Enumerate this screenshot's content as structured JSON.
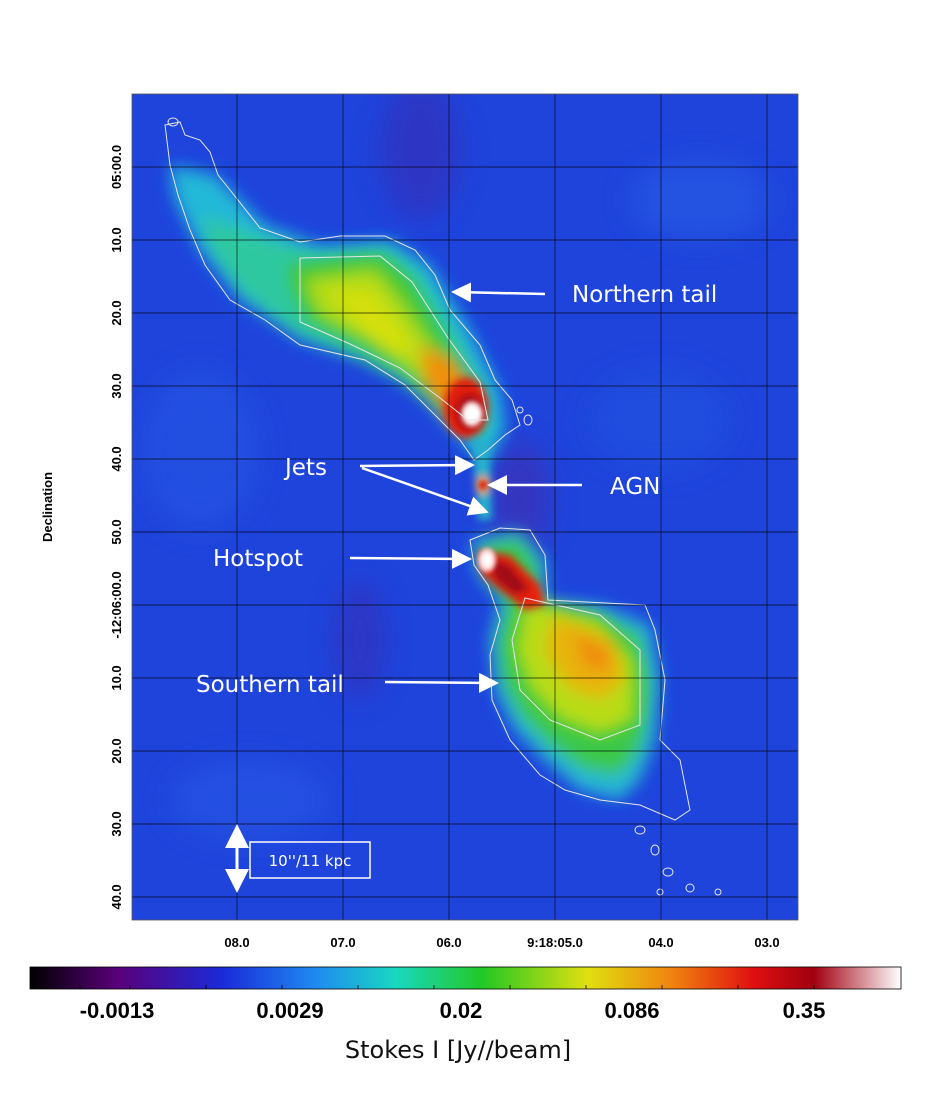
{
  "axes": {
    "ylabel": "Declination",
    "yticks": [
      "05:00.0",
      "10.0",
      "20.0",
      "30.0",
      "40.0",
      "50.0",
      "-12:06:00.0",
      "10.0",
      "20.0",
      "30.0",
      "40.0"
    ],
    "xticks": [
      "08.0",
      "07.0",
      "06.0",
      "9:18:05.0",
      "04.0",
      "03.0"
    ]
  },
  "annotations": {
    "northern_tail": "Northern tail",
    "jets": "Jets",
    "agn": "AGN",
    "hotspot": "Hotspot",
    "southern_tail": "Southern tail"
  },
  "scale_bar": {
    "label": "10''/11 kpc"
  },
  "colorbar": {
    "label": "Stokes I [Jy//beam]",
    "ticks": [
      "-0.0013",
      "0.0029",
      "0.02",
      "0.086",
      "0.35"
    ],
    "colors": [
      "#000000",
      "#5a007a",
      "#1a2ad8",
      "#1f8cf0",
      "#18d8c0",
      "#22c824",
      "#e0e010",
      "#f08010",
      "#e01010",
      "#a00010",
      "#ffffff"
    ]
  },
  "image": {
    "background_color": "#1e44dc",
    "grid_color": "#000000",
    "contour_color": "#e6e6e6"
  }
}
